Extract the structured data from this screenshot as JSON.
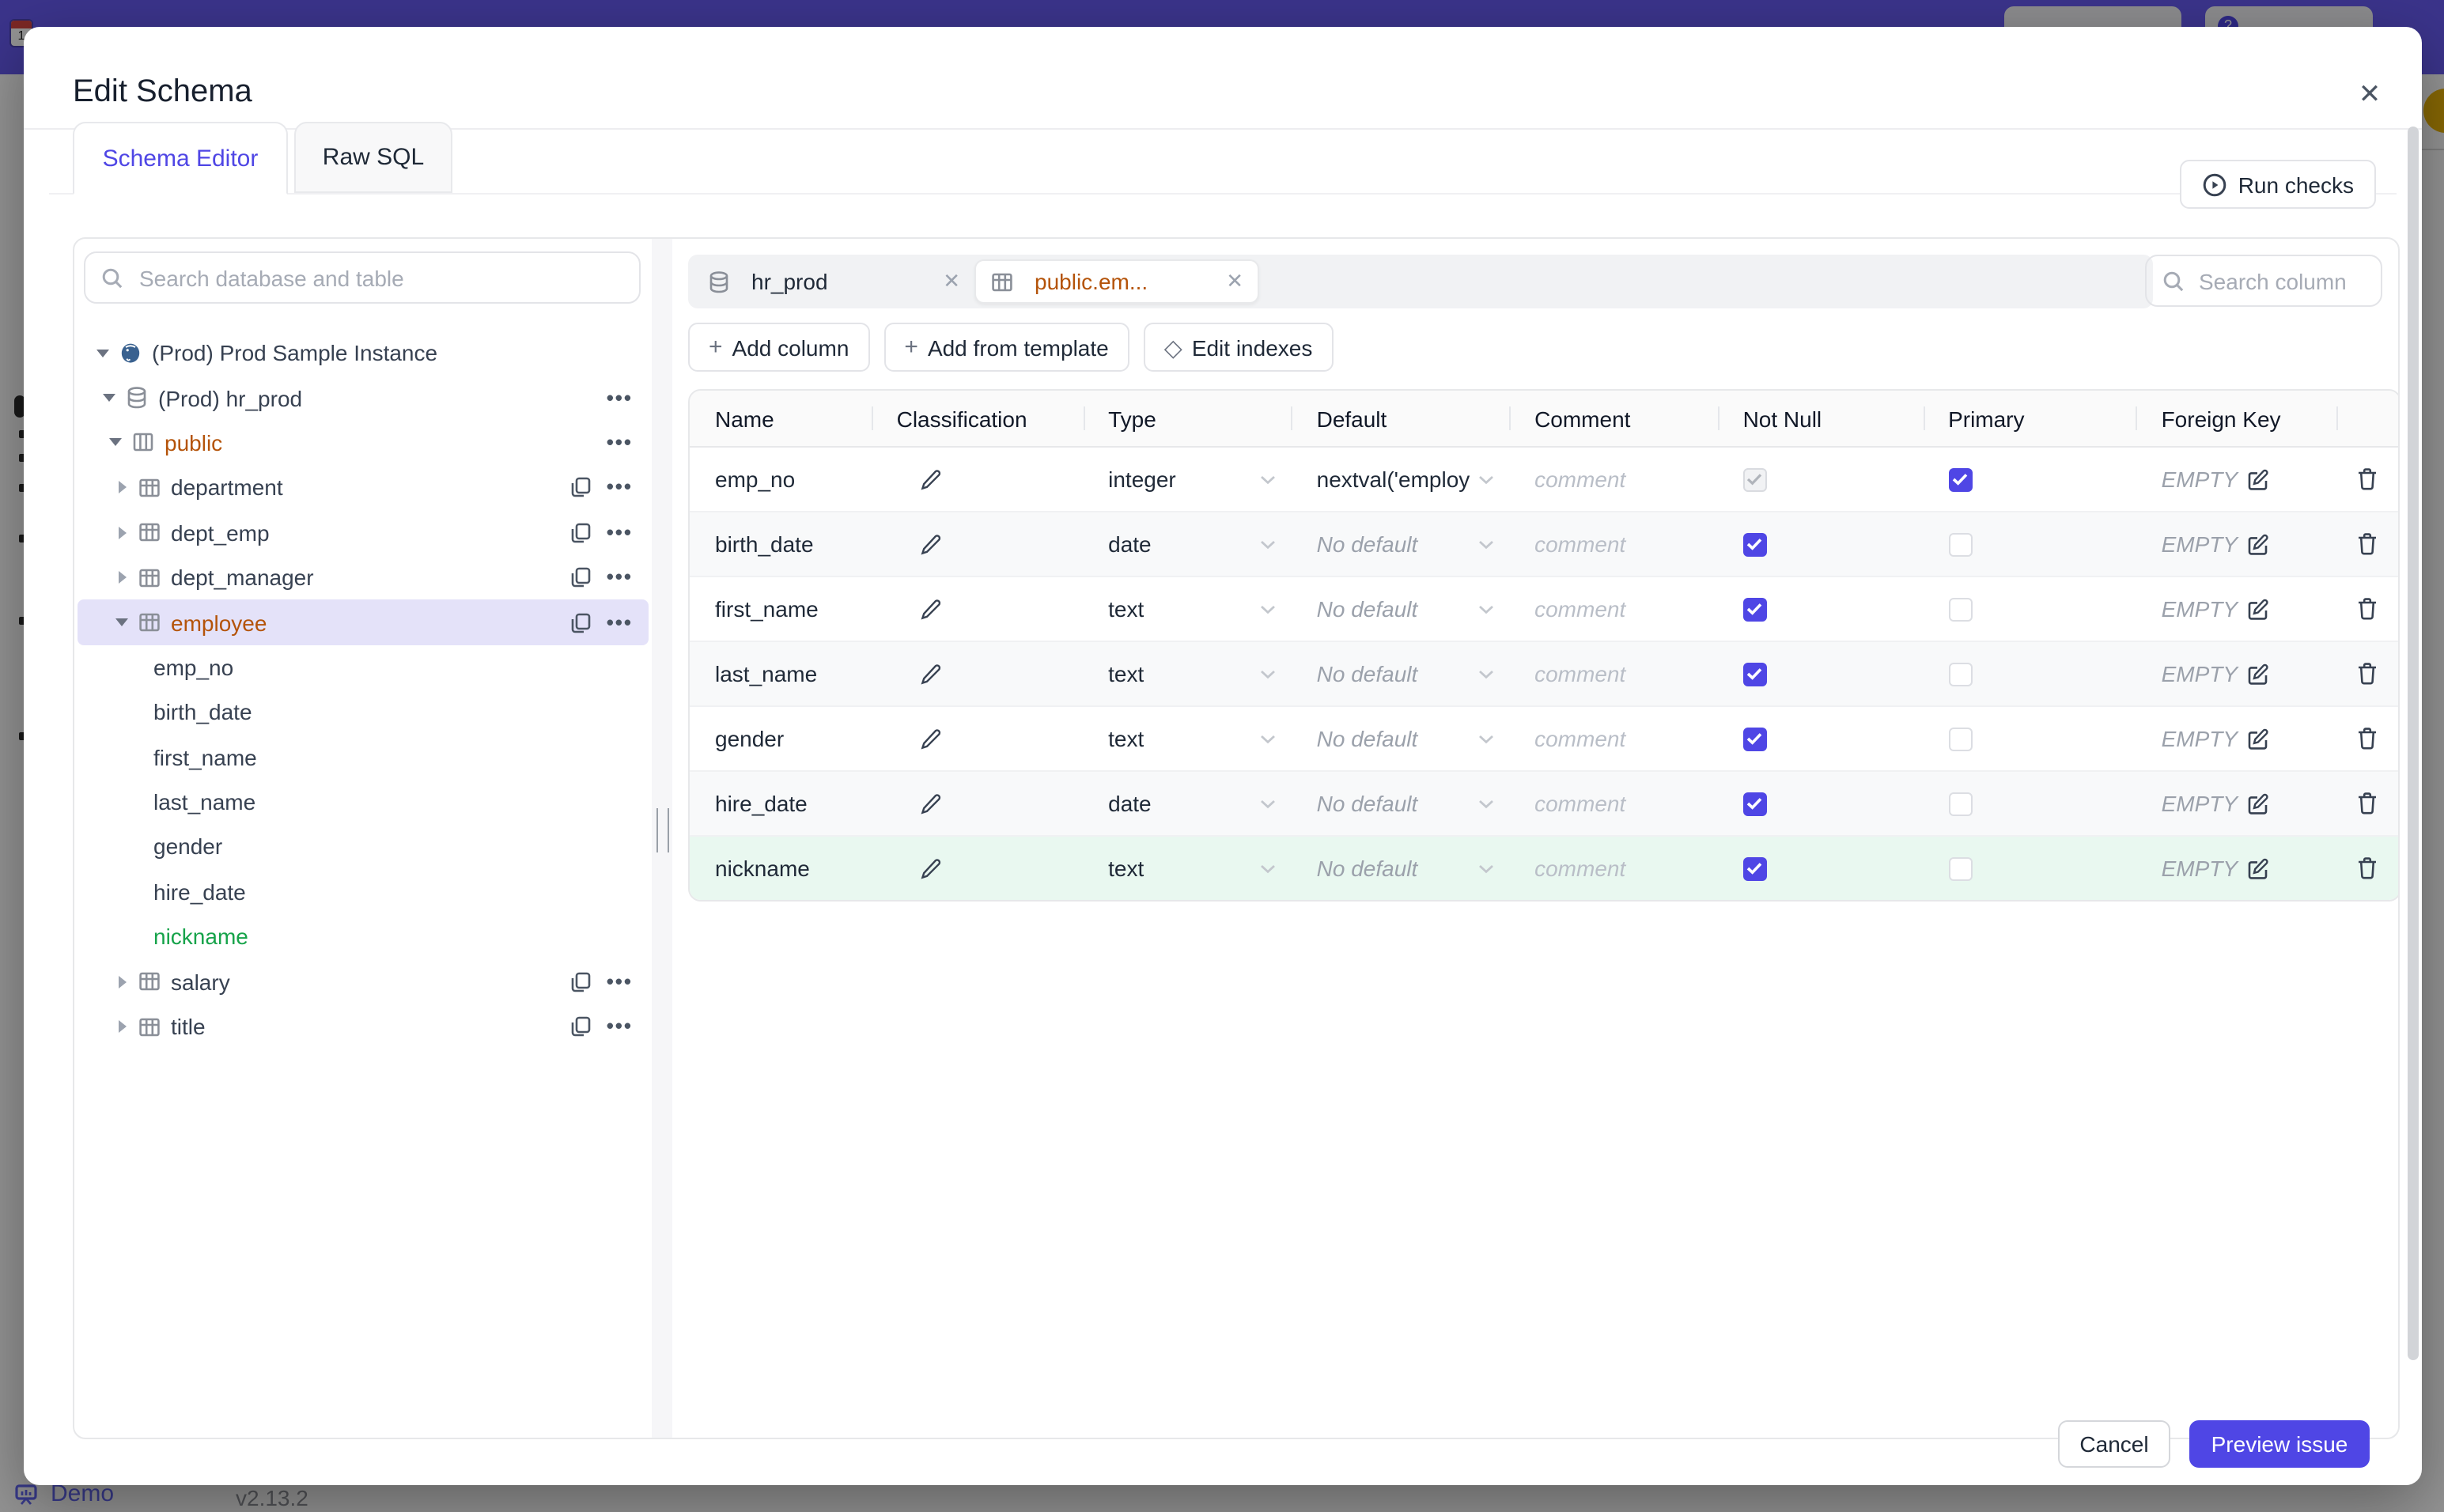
{
  "backdrop": {
    "demo": "Demo",
    "version": "v2.13.2",
    "calendar_day": "1",
    "help_mark": "?"
  },
  "modal": {
    "title": "Edit Schema",
    "close_icon": "✕"
  },
  "tabs": {
    "schema_editor": "Schema Editor",
    "raw_sql": "Raw SQL"
  },
  "run_checks": {
    "label": "Run checks"
  },
  "sidebar": {
    "search_placeholder": "Search database and table",
    "tree": [
      {
        "label": "(Prod) Prod Sample Instance",
        "icon": "postgres",
        "level": 0,
        "caret": "down"
      },
      {
        "label": "(Prod) hr_prod",
        "icon": "database",
        "level": 1,
        "caret": "down",
        "dots": true
      },
      {
        "label": "public",
        "icon": "schema",
        "level": 2,
        "caret": "down",
        "dots": true,
        "accent": "amber"
      },
      {
        "label": "department",
        "icon": "table",
        "level": 3,
        "caret": "right",
        "copy": true,
        "dots": true
      },
      {
        "label": "dept_emp",
        "icon": "table",
        "level": 3,
        "caret": "right",
        "copy": true,
        "dots": true
      },
      {
        "label": "dept_manager",
        "icon": "table",
        "level": 3,
        "caret": "right",
        "copy": true,
        "dots": true
      },
      {
        "label": "employee",
        "icon": "table",
        "level": 3,
        "caret": "down",
        "copy": true,
        "dots": true,
        "accent": "amber",
        "selected": true
      },
      {
        "label": "emp_no",
        "level": 4
      },
      {
        "label": "birth_date",
        "level": 4
      },
      {
        "label": "first_name",
        "level": 4
      },
      {
        "label": "last_name",
        "level": 4
      },
      {
        "label": "gender",
        "level": 4
      },
      {
        "label": "hire_date",
        "level": 4
      },
      {
        "label": "nickname",
        "level": 4,
        "accent": "green"
      },
      {
        "label": "salary",
        "icon": "table",
        "level": 3,
        "caret": "right",
        "copy": true,
        "dots": true
      },
      {
        "label": "title",
        "icon": "table",
        "level": 3,
        "caret": "right",
        "copy": true,
        "dots": true
      }
    ]
  },
  "editor": {
    "chips": [
      {
        "label": "hr_prod",
        "icon": "database",
        "active": false
      },
      {
        "label": "public.em...",
        "icon": "table",
        "active": true
      }
    ],
    "column_search_placeholder": "Search column",
    "toolbar": [
      {
        "icon": "plus",
        "label": "Add column"
      },
      {
        "icon": "plus",
        "label": "Add from template"
      },
      {
        "icon": "diamond",
        "label": "Edit indexes"
      }
    ],
    "table": {
      "headers": [
        "Name",
        "Classification",
        "Type",
        "Default",
        "Comment",
        "Not Null",
        "Primary",
        "Foreign Key",
        ""
      ],
      "placeholders": {
        "comment": "comment",
        "empty": "EMPTY",
        "no_default": "No default"
      },
      "rows": [
        {
          "name": "emp_no",
          "type": "integer",
          "default": "nextval('employ",
          "default_kind": "value",
          "not_null": "disabled-checked",
          "primary": "checked",
          "highlight": ""
        },
        {
          "name": "birth_date",
          "type": "date",
          "default": "No default",
          "default_kind": "placeholder",
          "not_null": "checked",
          "primary": "unchecked",
          "highlight": ""
        },
        {
          "name": "first_name",
          "type": "text",
          "default": "No default",
          "default_kind": "placeholder",
          "not_null": "checked",
          "primary": "unchecked",
          "highlight": ""
        },
        {
          "name": "last_name",
          "type": "text",
          "default": "No default",
          "default_kind": "placeholder",
          "not_null": "checked",
          "primary": "unchecked",
          "highlight": ""
        },
        {
          "name": "gender",
          "type": "text",
          "default": "No default",
          "default_kind": "placeholder",
          "not_null": "checked",
          "primary": "unchecked",
          "highlight": ""
        },
        {
          "name": "hire_date",
          "type": "date",
          "default": "No default",
          "default_kind": "placeholder",
          "not_null": "checked",
          "primary": "unchecked",
          "highlight": ""
        },
        {
          "name": "nickname",
          "type": "text",
          "default": "No default",
          "default_kind": "placeholder",
          "not_null": "checked",
          "primary": "unchecked",
          "highlight": "green"
        }
      ]
    }
  },
  "footer": {
    "cancel": "Cancel",
    "submit": "Preview issue"
  },
  "colors": {
    "accent": "#4f46e5",
    "amber": "#b45309",
    "green": "#16a34a",
    "topbar": "#665bf0",
    "selected_row": "#e4e2f9",
    "new_row": "#e9f8f0"
  }
}
